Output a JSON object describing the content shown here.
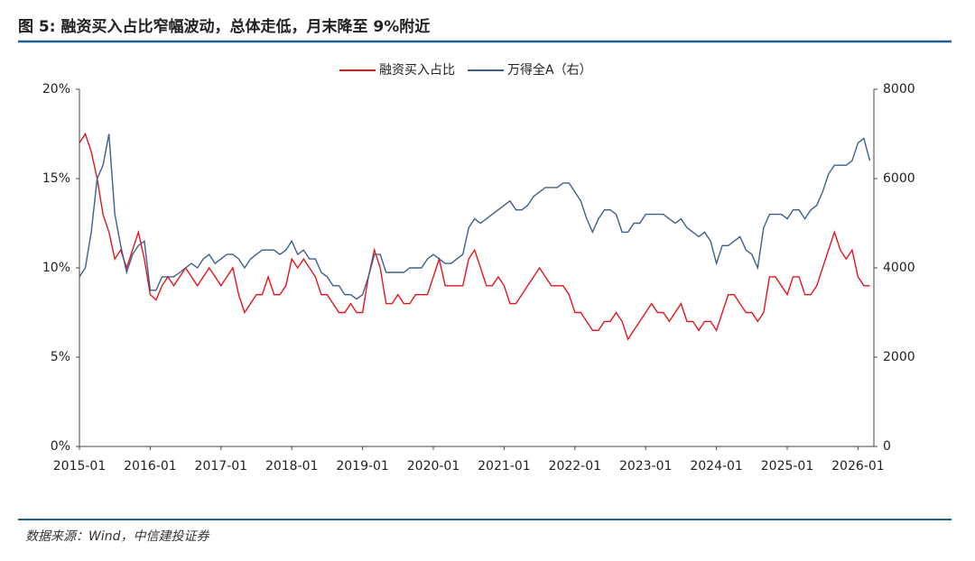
{
  "chart_data": {
    "type": "line",
    "title": "图 5: 融资买入占比窄幅波动，总体走低，月末降至 9%附近",
    "source": "数据来源：Wind，中信建投证券",
    "x": [
      "2015-01",
      "2015-02",
      "2015-03",
      "2015-04",
      "2015-05",
      "2015-06",
      "2015-07",
      "2015-08",
      "2015-09",
      "2015-10",
      "2015-11",
      "2015-12",
      "2016-01",
      "2016-02",
      "2016-03",
      "2016-04",
      "2016-05",
      "2016-06",
      "2016-07",
      "2016-08",
      "2016-09",
      "2016-10",
      "2016-11",
      "2016-12",
      "2017-01",
      "2017-02",
      "2017-03",
      "2017-04",
      "2017-05",
      "2017-06",
      "2017-07",
      "2017-08",
      "2017-09",
      "2017-10",
      "2017-11",
      "2017-12",
      "2018-01",
      "2018-02",
      "2018-03",
      "2018-04",
      "2018-05",
      "2018-06",
      "2018-07",
      "2018-08",
      "2018-09",
      "2018-10",
      "2018-11",
      "2018-12",
      "2019-01",
      "2019-02",
      "2019-03",
      "2019-04",
      "2019-05",
      "2019-06",
      "2019-07",
      "2019-08",
      "2019-09",
      "2019-10",
      "2019-11",
      "2019-12",
      "2020-01",
      "2020-02",
      "2020-03",
      "2020-04",
      "2020-05",
      "2020-06",
      "2020-07",
      "2020-08",
      "2020-09",
      "2020-10",
      "2020-11",
      "2020-12",
      "2021-01",
      "2021-02",
      "2021-03",
      "2021-04",
      "2021-05",
      "2021-06",
      "2021-07",
      "2021-08",
      "2021-09",
      "2021-10",
      "2021-11",
      "2021-12",
      "2022-01",
      "2022-02",
      "2022-03",
      "2022-04",
      "2022-05",
      "2022-06",
      "2022-07",
      "2022-08",
      "2022-09",
      "2022-10",
      "2022-11",
      "2022-12",
      "2023-01",
      "2023-02",
      "2023-03",
      "2023-04",
      "2023-05",
      "2023-06",
      "2023-07",
      "2023-08",
      "2023-09",
      "2023-10",
      "2023-11",
      "2023-12",
      "2024-01",
      "2024-02",
      "2024-03",
      "2024-04",
      "2024-05",
      "2024-06",
      "2024-07",
      "2024-08",
      "2024-09",
      "2024-10",
      "2024-11",
      "2024-12",
      "2025-01",
      "2025-02",
      "2025-03",
      "2025-04",
      "2025-05",
      "2025-06",
      "2025-07",
      "2025-08",
      "2025-09",
      "2025-10",
      "2025-11",
      "2025-12",
      "2026-01",
      "2026-02",
      "2026-03"
    ],
    "xticks": [
      "2015-01",
      "2016-01",
      "2017-01",
      "2018-01",
      "2019-01",
      "2020-01",
      "2021-01",
      "2022-01",
      "2023-01",
      "2024-01",
      "2025-01",
      "2026-01"
    ],
    "ylim": [
      0,
      20
    ],
    "yticks": [
      {
        "value": 0,
        "label": "0%"
      },
      {
        "value": 5,
        "label": "5%"
      },
      {
        "value": 10,
        "label": "10%"
      },
      {
        "value": 15,
        "label": "15%"
      },
      {
        "value": 20,
        "label": "20%"
      }
    ],
    "y2lim": [
      0,
      8000
    ],
    "y2ticks": [
      0,
      2000,
      4000,
      6000,
      8000
    ],
    "legend": "top",
    "series": [
      {
        "name": "融资买入占比",
        "color": "#e5141b",
        "values": [
          17,
          17.5,
          16.5,
          15,
          13,
          12,
          10.5,
          11,
          10,
          11,
          12,
          10.5,
          8.5,
          8.2,
          9,
          9.5,
          9,
          9.5,
          10,
          9.5,
          9,
          9.5,
          10,
          9.5,
          9,
          9.5,
          10,
          8.5,
          7.5,
          8,
          8.5,
          8.5,
          9.5,
          8.5,
          8.5,
          9,
          10.5,
          10,
          10.5,
          10,
          9.5,
          8.5,
          8.5,
          8,
          7.5,
          7.5,
          8,
          7.5,
          7.5,
          9.5,
          11,
          10,
          8,
          8,
          8.5,
          8,
          8,
          8.5,
          8.5,
          8.5,
          9.5,
          10.5,
          9,
          9,
          9,
          9,
          10.5,
          11,
          10,
          9,
          9,
          9.5,
          9,
          8,
          8,
          8.5,
          9,
          9.5,
          10,
          9.5,
          9,
          9,
          9,
          8.5,
          7.5,
          7.5,
          7,
          6.5,
          6.5,
          7,
          7,
          7.5,
          7,
          6,
          6.5,
          7,
          7.5,
          8,
          7.5,
          7.5,
          7,
          7.5,
          8,
          7,
          7,
          6.5,
          7,
          7,
          6.5,
          7.5,
          8.5,
          8.5,
          8,
          7.5,
          7.5,
          7,
          7.5,
          9.5,
          9.5,
          9,
          8.5,
          9.5,
          9.5,
          8.5,
          8.5,
          9,
          10,
          11,
          12,
          11,
          10.5,
          11,
          9.5,
          9,
          9
        ]
      },
      {
        "name": "万得全A（右）",
        "color": "#3d5f8f",
        "axis": "y2",
        "values": [
          3800,
          4000,
          4800,
          6000,
          6300,
          7000,
          5200,
          4500,
          3900,
          4300,
          4500,
          4600,
          3500,
          3500,
          3800,
          3800,
          3800,
          3900,
          4000,
          4100,
          4000,
          4200,
          4300,
          4100,
          4200,
          4300,
          4300,
          4200,
          4000,
          4200,
          4300,
          4400,
          4400,
          4400,
          4300,
          4400,
          4600,
          4300,
          4400,
          4200,
          4200,
          3900,
          3800,
          3600,
          3600,
          3400,
          3400,
          3300,
          3400,
          3800,
          4300,
          4300,
          3900,
          3900,
          3900,
          3900,
          4000,
          4000,
          4000,
          4200,
          4300,
          4200,
          4100,
          4100,
          4200,
          4300,
          4900,
          5100,
          5000,
          5100,
          5200,
          5300,
          5400,
          5500,
          5300,
          5300,
          5400,
          5600,
          5700,
          5800,
          5800,
          5800,
          5900,
          5900,
          5700,
          5500,
          5100,
          4800,
          5100,
          5300,
          5300,
          5200,
          4800,
          4800,
          5000,
          5000,
          5200,
          5200,
          5200,
          5200,
          5100,
          5000,
          5100,
          4900,
          4800,
          4700,
          4800,
          4600,
          4100,
          4500,
          4500,
          4600,
          4700,
          4400,
          4300,
          4000,
          4900,
          5200,
          5200,
          5200,
          5100,
          5300,
          5300,
          5100,
          5300,
          5400,
          5700,
          6100,
          6300,
          6300,
          6300,
          6400,
          6800,
          6900,
          6400
        ]
      }
    ]
  }
}
